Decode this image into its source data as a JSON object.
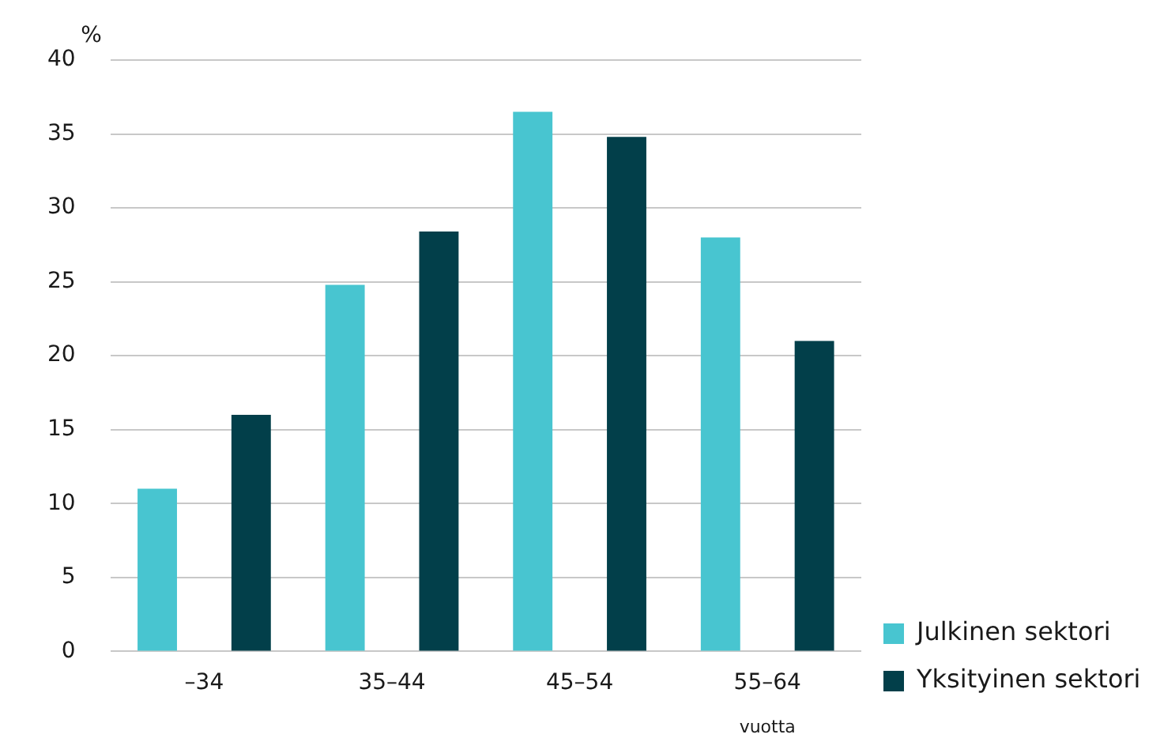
{
  "chart_data": {
    "type": "bar",
    "ylabel": "%",
    "xlabel": "vuotta",
    "categories": [
      "–34",
      "35–44",
      "45–54",
      "55–64"
    ],
    "series": [
      {
        "name": "Julkinen sektori",
        "color": "#48c5d0",
        "values": [
          11,
          24.8,
          36.5,
          28
        ]
      },
      {
        "name": "Yksityinen sektori",
        "color": "#023f4a",
        "values": [
          16,
          28.4,
          34.8,
          21
        ]
      }
    ],
    "ylim": [
      0,
      40
    ],
    "yticks": [
      0,
      5,
      10,
      15,
      20,
      25,
      30,
      35,
      40
    ],
    "grid": "y",
    "legend": "bottom right"
  }
}
